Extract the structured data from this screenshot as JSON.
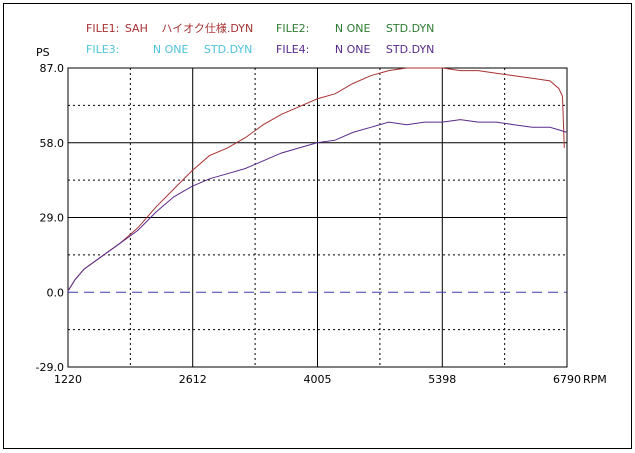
{
  "legend": [
    {
      "label": "FILE1:",
      "name": "SAH",
      "file": "ハイオク仕様.DYN",
      "color": "#a83232"
    },
    {
      "label": "FILE2:",
      "name": "N ONE",
      "file": "STD.DYN",
      "color": "#2e7d32"
    },
    {
      "label": "FILE3:",
      "name": "N ONE",
      "file": "STD.DYN",
      "color": "#4fc3d9"
    },
    {
      "label": "FILE4:",
      "name": "N ONE",
      "file": "STD.DYN",
      "color": "#5a2a8a"
    }
  ],
  "chart_data": {
    "type": "line",
    "title": "",
    "xlabel": "RPM",
    "ylabel": "PS",
    "xlim": [
      1220,
      6790
    ],
    "ylim": [
      -29.0,
      87.0
    ],
    "x_ticks": [
      "1220",
      "2612",
      "4005",
      "5398",
      "6790"
    ],
    "y_ticks": [
      "87.0",
      "58.0",
      "29.0",
      "0.0",
      "-29.0"
    ],
    "grid": true,
    "series": [
      {
        "name": "SAH",
        "color": "#a83232",
        "x": [
          1220,
          1300,
          1400,
          1600,
          1800,
          2000,
          2200,
          2400,
          2600,
          2800,
          3000,
          3200,
          3400,
          3600,
          3800,
          4000,
          4200,
          4400,
          4600,
          4800,
          5000,
          5200,
          5400,
          5600,
          5800,
          6000,
          6200,
          6400,
          6600,
          6700,
          6740,
          6760
        ],
        "y": [
          0.5,
          5,
          9,
          14,
          19,
          25,
          33,
          40,
          47,
          53,
          56,
          60,
          65,
          69,
          72,
          75,
          77,
          81,
          84,
          86,
          87,
          87,
          87,
          86,
          86,
          85,
          84,
          83,
          82,
          79,
          76,
          56
        ]
      },
      {
        "name": "N ONE",
        "color": "#5a2a8a",
        "x": [
          1220,
          1300,
          1400,
          1600,
          1800,
          2000,
          2200,
          2400,
          2600,
          2800,
          3000,
          3200,
          3400,
          3600,
          3800,
          4000,
          4200,
          4400,
          4600,
          4800,
          5000,
          5200,
          5400,
          5600,
          5800,
          6000,
          6200,
          6400,
          6600,
          6700,
          6790
        ],
        "y": [
          0.5,
          5,
          9,
          14,
          19,
          24,
          31,
          37,
          41,
          44,
          46,
          48,
          51,
          54,
          56,
          58,
          59,
          62,
          64,
          66,
          65,
          66,
          66,
          67,
          66,
          66,
          65,
          64,
          64,
          63,
          62
        ]
      }
    ]
  }
}
